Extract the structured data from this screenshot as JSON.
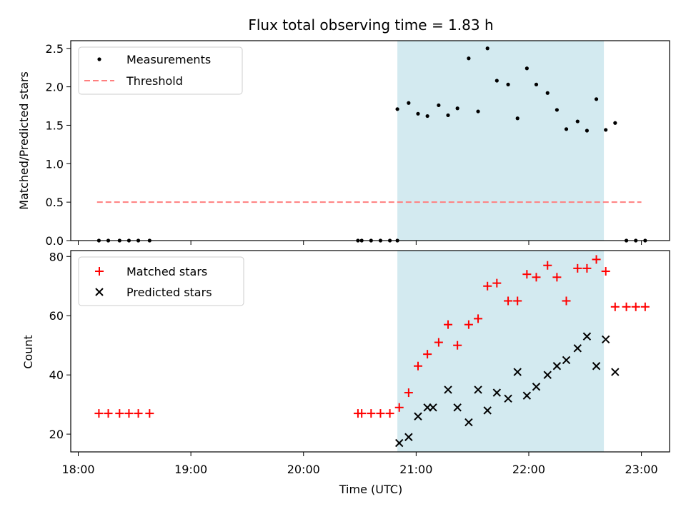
{
  "title": "Flux total observing time = 1.83 h",
  "chart_data": [
    {
      "type": "scatter",
      "ylabel": "Matched/Predicted stars",
      "ylim": [
        0,
        2.6
      ],
      "yticks": [
        0.0,
        0.5,
        1.0,
        1.5,
        2.0,
        2.5
      ],
      "ytick_labels": [
        "0.0",
        "0.5",
        "1.0",
        "1.5",
        "2.0",
        "2.5"
      ],
      "legend_position": "top-left",
      "shaded_interval": {
        "start": "20:50",
        "end": "22:40",
        "color": "#d3eaf0"
      },
      "threshold": {
        "name": "Threshold",
        "value": 0.5,
        "x_start": "18:10",
        "x_end": "23:00",
        "color": "#ff7f7f"
      },
      "series": [
        {
          "name": "Measurements",
          "marker": "dot",
          "color": "#000000",
          "x": [
            "18:11",
            "18:16",
            "18:22",
            "18:27",
            "18:32",
            "18:38",
            "20:29",
            "20:31",
            "20:36",
            "20:41",
            "20:46",
            "20:50",
            "20:50",
            "20:56",
            "21:01",
            "21:06",
            "21:12",
            "21:17",
            "21:22",
            "21:28",
            "21:33",
            "21:38",
            "21:43",
            "21:49",
            "21:54",
            "21:59",
            "22:04",
            "22:10",
            "22:15",
            "22:20",
            "22:26",
            "22:31",
            "22:36",
            "22:41",
            "22:46",
            "22:52",
            "22:57",
            "23:02"
          ],
          "y": [
            0,
            0,
            0,
            0,
            0,
            0,
            0,
            0,
            0,
            0,
            0,
            0,
            1.71,
            1.79,
            1.65,
            1.62,
            1.76,
            1.63,
            1.72,
            2.37,
            1.68,
            2.5,
            2.08,
            2.03,
            1.59,
            2.24,
            2.03,
            1.92,
            1.7,
            1.45,
            1.55,
            1.43,
            1.84,
            1.44,
            1.53,
            0,
            0,
            0
          ]
        }
      ]
    },
    {
      "type": "scatter",
      "xlabel": "Time (UTC)",
      "ylabel": "Count",
      "ylim": [
        14,
        82
      ],
      "yticks": [
        20,
        40,
        60,
        80
      ],
      "ytick_labels": [
        "20",
        "40",
        "60",
        "80"
      ],
      "xlim": [
        "17:56",
        "23:15"
      ],
      "xticks": [
        "18:00",
        "19:00",
        "20:00",
        "21:00",
        "22:00",
        "23:00"
      ],
      "legend_position": "top-left",
      "shaded_interval": {
        "start": "20:50",
        "end": "22:40",
        "color": "#d3eaf0"
      },
      "series": [
        {
          "name": "Matched stars",
          "marker": "plus",
          "color": "#ff0000",
          "x": [
            "18:11",
            "18:16",
            "18:22",
            "18:27",
            "18:32",
            "18:38",
            "20:29",
            "20:31",
            "20:36",
            "20:41",
            "20:46",
            "20:51",
            "20:56",
            "21:01",
            "21:06",
            "21:12",
            "21:17",
            "21:22",
            "21:28",
            "21:33",
            "21:38",
            "21:43",
            "21:49",
            "21:54",
            "21:59",
            "22:04",
            "22:10",
            "22:15",
            "22:20",
            "22:26",
            "22:31",
            "22:36",
            "22:41",
            "22:46",
            "22:52",
            "22:57",
            "23:02"
          ],
          "y": [
            27,
            27,
            27,
            27,
            27,
            27,
            27,
            27,
            27,
            27,
            27,
            29,
            34,
            43,
            47,
            51,
            57,
            50,
            57,
            59,
            70,
            71,
            65,
            65,
            74,
            73,
            77,
            73,
            65,
            76,
            76,
            79,
            75,
            63,
            63,
            63,
            63
          ]
        },
        {
          "name": "Predicted stars",
          "marker": "x",
          "color": "#000000",
          "x": [
            "20:51",
            "20:56",
            "21:01",
            "21:06",
            "21:09",
            "21:17",
            "21:22",
            "21:28",
            "21:33",
            "21:38",
            "21:43",
            "21:49",
            "21:54",
            "21:59",
            "22:04",
            "22:10",
            "22:15",
            "22:20",
            "22:26",
            "22:31",
            "22:36",
            "22:41",
            "22:46"
          ],
          "y": [
            17,
            19,
            26,
            29,
            29,
            35,
            29,
            24,
            35,
            28,
            34,
            32,
            41,
            33,
            36,
            40,
            43,
            45,
            49,
            53,
            43,
            52,
            41
          ]
        }
      ]
    }
  ]
}
